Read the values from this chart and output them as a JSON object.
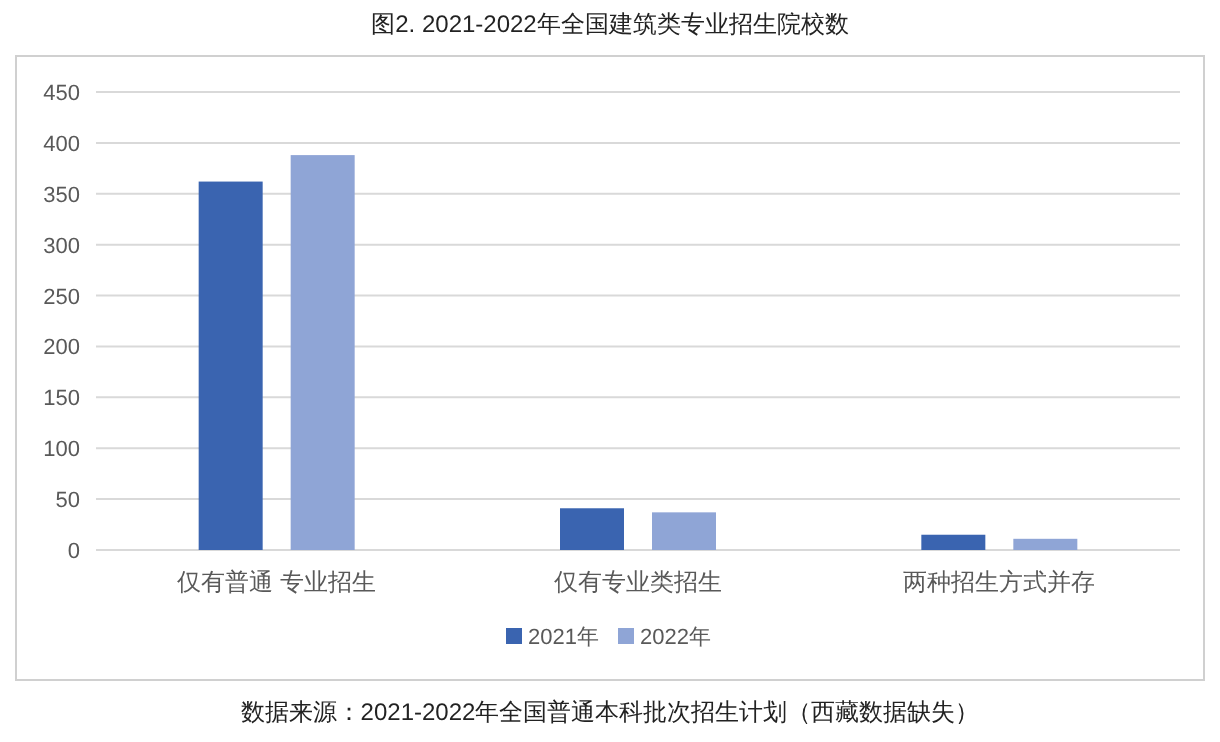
{
  "chart_data": {
    "type": "bar",
    "title": "图2.  2021-2022年全国建筑类专业招生院校数",
    "categories": [
      "仅有普通 专业招生",
      "仅有专业类招生",
      "两种招生方式并存"
    ],
    "series": [
      {
        "name": "2021年",
        "color": "#3a64b0",
        "values": [
          362,
          41,
          15
        ]
      },
      {
        "name": "2022年",
        "color": "#8fa5d6",
        "values": [
          388,
          37,
          11
        ]
      }
    ],
    "ylim": [
      0,
      450
    ],
    "yticks": [
      0,
      50,
      100,
      150,
      200,
      250,
      300,
      350,
      400,
      450
    ],
    "grid": "y",
    "legend": "bottom",
    "annotations": [
      "数据来源：2021-2022年全国普通本科批次招生计划（西藏数据缺失）"
    ]
  }
}
